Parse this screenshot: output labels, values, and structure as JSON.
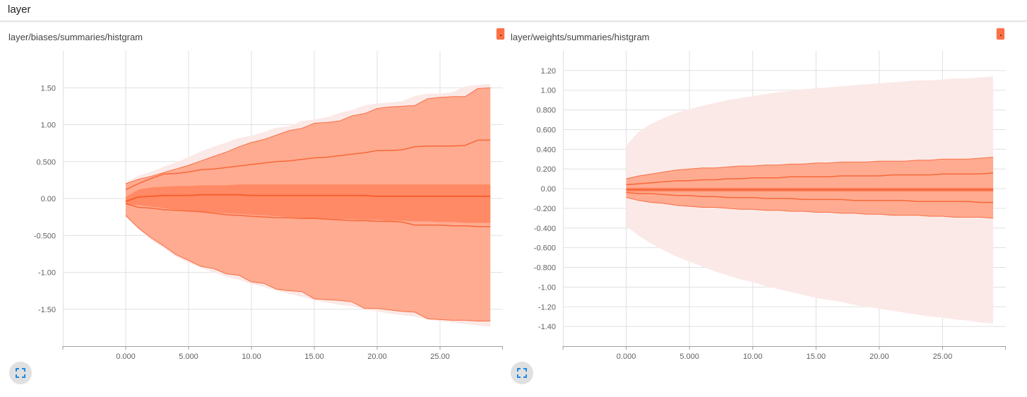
{
  "header": {
    "title": "layer"
  },
  "colors": {
    "accent": "#ff7043",
    "band_outer": "#fbe9e7",
    "band_mid": "#ffab91",
    "band_inner": "#ff8a65",
    "median": "#f4511e",
    "expand_icon": "#1e88e5"
  },
  "icons": {
    "expand": "fullscreen-icon",
    "color": "color-picker-icon"
  },
  "chart_data": [
    {
      "type": "area",
      "title": "layer/biases/summaries/histgram",
      "xlabel": "",
      "ylabel": "",
      "xlim": [
        -5,
        30
      ],
      "ylim": [
        -2.0,
        2.0
      ],
      "grid": true,
      "x_ticks": [
        0,
        5,
        10,
        15,
        20,
        25
      ],
      "x_tick_labels": [
        "0.000",
        "5.000",
        "10.00",
        "15.00",
        "20.00",
        "25.00"
      ],
      "y_ticks": [
        1.5,
        1.0,
        0.5,
        0.0,
        -0.5,
        -1.0,
        -1.5
      ],
      "y_tick_labels": [
        "1.50",
        "1.00",
        "0.500",
        "0.00",
        "-0.500",
        "-1.00",
        "-1.50"
      ],
      "x": [
        0,
        1,
        2,
        3,
        4,
        5,
        6,
        7,
        8,
        9,
        10,
        11,
        12,
        13,
        14,
        15,
        16,
        17,
        18,
        19,
        20,
        21,
        22,
        23,
        24,
        25,
        26,
        27,
        28,
        29
      ],
      "percentiles": {
        "max": [
          0.22,
          0.31,
          0.36,
          0.43,
          0.49,
          0.56,
          0.64,
          0.7,
          0.76,
          0.82,
          0.85,
          0.9,
          0.96,
          0.98,
          1.05,
          1.07,
          1.1,
          1.16,
          1.2,
          1.26,
          1.29,
          1.3,
          1.32,
          1.39,
          1.42,
          1.42,
          1.44,
          1.52,
          1.54,
          1.55
        ],
        "p93": [
          0.2,
          0.26,
          0.3,
          0.35,
          0.4,
          0.45,
          0.51,
          0.57,
          0.63,
          0.7,
          0.76,
          0.8,
          0.86,
          0.92,
          0.95,
          1.02,
          1.03,
          1.05,
          1.12,
          1.15,
          1.22,
          1.24,
          1.25,
          1.26,
          1.35,
          1.37,
          1.38,
          1.38,
          1.49,
          1.5
        ],
        "p84": [
          0.12,
          0.2,
          0.27,
          0.33,
          0.34,
          0.36,
          0.39,
          0.4,
          0.42,
          0.44,
          0.46,
          0.48,
          0.5,
          0.51,
          0.53,
          0.55,
          0.56,
          0.58,
          0.6,
          0.62,
          0.65,
          0.65,
          0.66,
          0.7,
          0.71,
          0.71,
          0.71,
          0.72,
          0.79,
          0.79
        ],
        "p69": [
          0.02,
          0.12,
          0.15,
          0.16,
          0.17,
          0.17,
          0.18,
          0.18,
          0.18,
          0.19,
          0.19,
          0.19,
          0.19,
          0.19,
          0.19,
          0.19,
          0.19,
          0.19,
          0.19,
          0.19,
          0.19,
          0.19,
          0.19,
          0.19,
          0.19,
          0.19,
          0.19,
          0.19,
          0.19,
          0.19
        ],
        "p50": [
          -0.04,
          0.02,
          0.03,
          0.04,
          0.04,
          0.04,
          0.05,
          0.05,
          0.05,
          0.05,
          0.04,
          0.04,
          0.04,
          0.04,
          0.04,
          0.04,
          0.04,
          0.04,
          0.04,
          0.04,
          0.03,
          0.03,
          0.03,
          0.03,
          0.03,
          0.03,
          0.03,
          0.03,
          0.03,
          0.03
        ],
        "p31": [
          -0.08,
          -0.09,
          -0.11,
          -0.13,
          -0.15,
          -0.16,
          -0.18,
          -0.19,
          -0.2,
          -0.21,
          -0.22,
          -0.23,
          -0.24,
          -0.25,
          -0.26,
          -0.27,
          -0.27,
          -0.28,
          -0.28,
          -0.29,
          -0.29,
          -0.3,
          -0.3,
          -0.31,
          -0.31,
          -0.32,
          -0.32,
          -0.33,
          -0.33,
          -0.33
        ],
        "p16": [
          -0.07,
          -0.12,
          -0.13,
          -0.15,
          -0.16,
          -0.17,
          -0.18,
          -0.2,
          -0.22,
          -0.23,
          -0.24,
          -0.25,
          -0.26,
          -0.26,
          -0.27,
          -0.27,
          -0.28,
          -0.29,
          -0.3,
          -0.3,
          -0.31,
          -0.31,
          -0.32,
          -0.36,
          -0.36,
          -0.36,
          -0.37,
          -0.37,
          -0.38,
          -0.38
        ],
        "p7": [
          -0.23,
          -0.4,
          -0.53,
          -0.64,
          -0.76,
          -0.84,
          -0.92,
          -0.95,
          -1.02,
          -1.04,
          -1.13,
          -1.15,
          -1.23,
          -1.25,
          -1.26,
          -1.36,
          -1.37,
          -1.38,
          -1.4,
          -1.49,
          -1.49,
          -1.51,
          -1.53,
          -1.54,
          -1.63,
          -1.64,
          -1.65,
          -1.65,
          -1.66,
          -1.66
        ],
        "min": [
          -0.25,
          -0.41,
          -0.56,
          -0.67,
          -0.79,
          -0.87,
          -0.94,
          -1.0,
          -1.06,
          -1.1,
          -1.16,
          -1.2,
          -1.25,
          -1.29,
          -1.33,
          -1.38,
          -1.41,
          -1.44,
          -1.46,
          -1.5,
          -1.53,
          -1.56,
          -1.58,
          -1.6,
          -1.64,
          -1.66,
          -1.68,
          -1.7,
          -1.72,
          -1.74
        ]
      }
    },
    {
      "type": "area",
      "title": "layer/weights/summaries/histgram",
      "xlabel": "",
      "ylabel": "",
      "xlim": [
        -5,
        30
      ],
      "ylim": [
        -1.6,
        1.4
      ],
      "grid": true,
      "x_ticks": [
        0,
        5,
        10,
        15,
        20,
        25
      ],
      "x_tick_labels": [
        "0.000",
        "5.000",
        "10.00",
        "15.00",
        "20.00",
        "25.00"
      ],
      "y_ticks": [
        1.2,
        1.0,
        0.8,
        0.6,
        0.4,
        0.2,
        0.0,
        -0.2,
        -0.4,
        -0.6,
        -0.8,
        -1.0,
        -1.2,
        -1.4
      ],
      "y_tick_labels": [
        "1.20",
        "1.00",
        "0.800",
        "0.600",
        "0.400",
        "0.200",
        "0.00",
        "-0.200",
        "-0.400",
        "-0.600",
        "-0.800",
        "-1.00",
        "-1.20",
        "-1.40"
      ],
      "x": [
        0,
        1,
        2,
        3,
        4,
        5,
        6,
        7,
        8,
        9,
        10,
        11,
        12,
        13,
        14,
        15,
        16,
        17,
        18,
        19,
        20,
        21,
        22,
        23,
        24,
        25,
        26,
        27,
        28,
        29
      ],
      "percentiles": {
        "max": [
          0.44,
          0.58,
          0.66,
          0.72,
          0.77,
          0.81,
          0.84,
          0.87,
          0.9,
          0.92,
          0.94,
          0.96,
          0.98,
          0.99,
          1.01,
          1.02,
          1.03,
          1.04,
          1.05,
          1.06,
          1.07,
          1.08,
          1.09,
          1.1,
          1.1,
          1.11,
          1.12,
          1.12,
          1.13,
          1.14
        ],
        "p93": [
          0.1,
          0.13,
          0.15,
          0.17,
          0.19,
          0.2,
          0.21,
          0.21,
          0.22,
          0.23,
          0.23,
          0.24,
          0.24,
          0.25,
          0.25,
          0.26,
          0.26,
          0.27,
          0.27,
          0.27,
          0.28,
          0.28,
          0.28,
          0.29,
          0.29,
          0.3,
          0.3,
          0.3,
          0.31,
          0.32
        ],
        "p84": [
          0.04,
          0.05,
          0.06,
          0.07,
          0.08,
          0.08,
          0.09,
          0.09,
          0.1,
          0.1,
          0.11,
          0.11,
          0.11,
          0.12,
          0.12,
          0.12,
          0.12,
          0.13,
          0.13,
          0.13,
          0.13,
          0.14,
          0.14,
          0.14,
          0.14,
          0.15,
          0.15,
          0.15,
          0.15,
          0.16
        ],
        "p69": [
          0.01,
          0.01,
          0.01,
          0.01,
          0.01,
          0.01,
          0.01,
          0.01,
          0.01,
          0.01,
          0.01,
          0.01,
          0.01,
          0.01,
          0.01,
          0.01,
          0.01,
          0.01,
          0.01,
          0.01,
          0.01,
          0.01,
          0.01,
          0.01,
          0.01,
          0.01,
          0.01,
          0.01,
          0.01,
          0.01
        ],
        "p50": [
          -0.01,
          -0.01,
          -0.01,
          -0.01,
          -0.01,
          -0.01,
          -0.01,
          -0.01,
          -0.01,
          -0.01,
          -0.01,
          -0.01,
          -0.01,
          -0.01,
          -0.01,
          -0.01,
          -0.01,
          -0.01,
          -0.01,
          -0.01,
          -0.01,
          -0.01,
          -0.01,
          -0.01,
          -0.01,
          -0.01,
          -0.01,
          -0.01,
          -0.01,
          -0.01
        ],
        "p31": [
          -0.03,
          -0.03,
          -0.03,
          -0.03,
          -0.03,
          -0.03,
          -0.03,
          -0.03,
          -0.03,
          -0.03,
          -0.03,
          -0.03,
          -0.03,
          -0.03,
          -0.03,
          -0.03,
          -0.03,
          -0.03,
          -0.03,
          -0.03,
          -0.03,
          -0.03,
          -0.03,
          -0.03,
          -0.03,
          -0.03,
          -0.03,
          -0.03,
          -0.03,
          -0.03
        ],
        "p16": [
          -0.04,
          -0.05,
          -0.05,
          -0.06,
          -0.07,
          -0.07,
          -0.08,
          -0.08,
          -0.09,
          -0.09,
          -0.09,
          -0.1,
          -0.1,
          -0.1,
          -0.11,
          -0.11,
          -0.11,
          -0.11,
          -0.12,
          -0.12,
          -0.12,
          -0.12,
          -0.12,
          -0.13,
          -0.13,
          -0.13,
          -0.13,
          -0.13,
          -0.14,
          -0.14
        ],
        "p7": [
          -0.09,
          -0.12,
          -0.14,
          -0.15,
          -0.17,
          -0.18,
          -0.19,
          -0.19,
          -0.2,
          -0.21,
          -0.21,
          -0.22,
          -0.22,
          -0.23,
          -0.23,
          -0.24,
          -0.24,
          -0.25,
          -0.25,
          -0.26,
          -0.26,
          -0.27,
          -0.27,
          -0.27,
          -0.28,
          -0.28,
          -0.29,
          -0.29,
          -0.29,
          -0.3
        ],
        "min": [
          -0.38,
          -0.48,
          -0.56,
          -0.63,
          -0.69,
          -0.74,
          -0.79,
          -0.84,
          -0.88,
          -0.92,
          -0.95,
          -0.99,
          -1.02,
          -1.05,
          -1.08,
          -1.11,
          -1.13,
          -1.15,
          -1.18,
          -1.2,
          -1.22,
          -1.24,
          -1.26,
          -1.28,
          -1.3,
          -1.31,
          -1.33,
          -1.34,
          -1.36,
          -1.37
        ]
      }
    }
  ]
}
